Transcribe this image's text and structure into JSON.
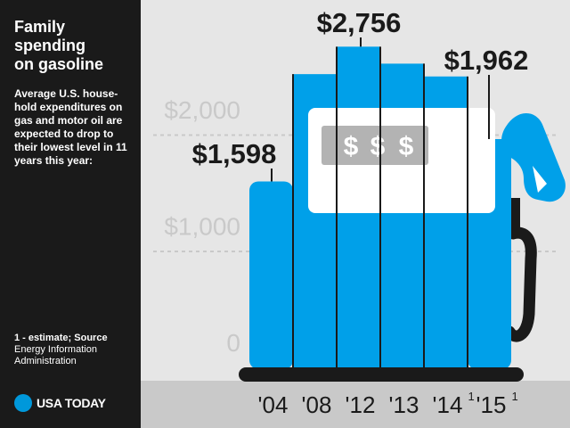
{
  "sidebar": {
    "title_lines": [
      "Family",
      "spending",
      "on gasoline"
    ],
    "subtitle": "Average U.S. house-hold expenditures on gas and motor oil are expected to drop to their lowest level in 11 years this year:",
    "source_note": "1 - estimate;",
    "source_label": "Source",
    "source_text": "Energy Information Administration",
    "logo_text": "USA TODAY"
  },
  "colors": {
    "bar": "#00a0e9",
    "panel": "#ffffff",
    "gauge": "#b3b3b3",
    "ink": "#1a1a1a",
    "logo": "#0098db"
  },
  "pump_display": {
    "symbols": [
      "$",
      "$",
      "$"
    ]
  },
  "chart_data": {
    "type": "bar",
    "title": "Family spending on gasoline",
    "subtitle": "Average U.S. household expenditures on gas and motor oil are expected to drop to their lowest level in 11 years this year:",
    "categories": [
      "'04",
      "'08",
      "'12",
      "'13",
      "'14",
      "'15"
    ],
    "category_superscripts": [
      "",
      "",
      "",
      "",
      "1",
      "1"
    ],
    "values": [
      1598,
      2520,
      2756,
      2610,
      2500,
      1962
    ],
    "data_labels": [
      {
        "index": 0,
        "text": "$1,598"
      },
      {
        "index": 2,
        "text": "$2,756"
      },
      {
        "index": 5,
        "text": "$1,962"
      }
    ],
    "y_ticks": [
      {
        "value": 0,
        "label": "0"
      },
      {
        "value": 1000,
        "label": "$1,000"
      },
      {
        "value": 2000,
        "label": "$2,000"
      }
    ],
    "ylim": [
      0,
      3000
    ],
    "xlabel": "",
    "ylabel": "",
    "grid": true,
    "legend": "none"
  }
}
